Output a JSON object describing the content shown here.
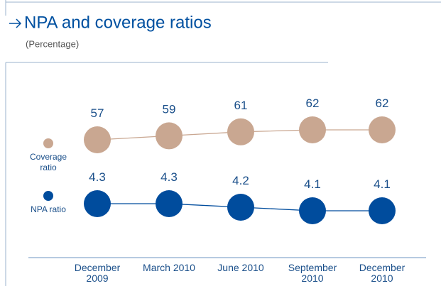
{
  "chart_data": {
    "type": "line",
    "title": "NPA and coverage ratios",
    "subtitle": "(Percentage)",
    "categories": [
      "December 2009",
      "March 2010",
      "June 2010",
      "September 2010",
      "December 2010"
    ],
    "series": [
      {
        "name": "Coverage ratio",
        "color": "#c9a791",
        "values": [
          57,
          59,
          61,
          62,
          62
        ]
      },
      {
        "name": "NPA ratio",
        "color": "#004c9d",
        "values": [
          4.3,
          4.3,
          4.2,
          4.1,
          4.1
        ]
      }
    ]
  }
}
